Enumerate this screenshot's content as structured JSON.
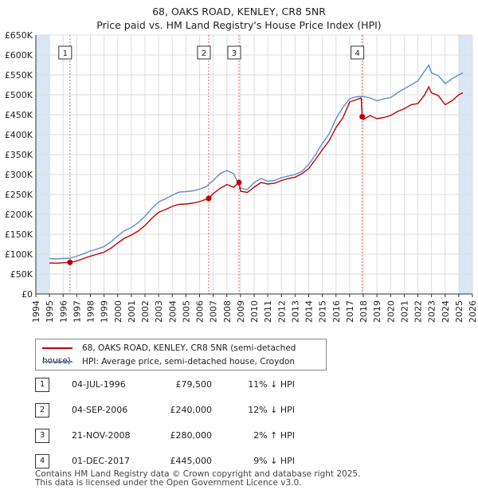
{
  "title": "68, OAKS ROAD, KENLEY, CR8 5NR",
  "subtitle": "Price paid vs. HM Land Registry's House Price Index (HPI)",
  "colors": {
    "property": "#c00000",
    "hpi": "#5b8fd0",
    "shade": "#dbe6f4",
    "grid": "#dddddd",
    "vline": "#e06060"
  },
  "chart_data": {
    "type": "line",
    "xlim": [
      1994,
      2026
    ],
    "ylim": [
      0,
      650000
    ],
    "y_ticks": [
      {
        "v": 0,
        "label": "£0"
      },
      {
        "v": 50000,
        "label": "£50K"
      },
      {
        "v": 100000,
        "label": "£100K"
      },
      {
        "v": 150000,
        "label": "£150K"
      },
      {
        "v": 200000,
        "label": "£200K"
      },
      {
        "v": 250000,
        "label": "£250K"
      },
      {
        "v": 300000,
        "label": "£300K"
      },
      {
        "v": 350000,
        "label": "£350K"
      },
      {
        "v": 400000,
        "label": "£400K"
      },
      {
        "v": 450000,
        "label": "£450K"
      },
      {
        "v": 500000,
        "label": "£500K"
      },
      {
        "v": 550000,
        "label": "£550K"
      },
      {
        "v": 600000,
        "label": "£600K"
      },
      {
        "v": 650000,
        "label": "£650K"
      }
    ],
    "x_ticks": [
      "1994",
      "1995",
      "1996",
      "1997",
      "1998",
      "1999",
      "2000",
      "2001",
      "2002",
      "2003",
      "2004",
      "2005",
      "2006",
      "2007",
      "2008",
      "2009",
      "2010",
      "2011",
      "2012",
      "2013",
      "2014",
      "2015",
      "2016",
      "2017",
      "2018",
      "2019",
      "2020",
      "2021",
      "2022",
      "2023",
      "2024",
      "2025",
      "2026"
    ],
    "shaded_ranges": [
      [
        1994,
        1995.0
      ],
      [
        2025.0,
        2026
      ]
    ],
    "series": [
      {
        "name": "68, OAKS ROAD, KENLEY, CR8 5NR (semi-detached house)",
        "color": "#c00000",
        "points": [
          [
            1995.0,
            78000
          ],
          [
            1995.5,
            77500
          ],
          [
            1996.0,
            78500
          ],
          [
            1996.5,
            79500
          ],
          [
            1997.0,
            83000
          ],
          [
            1997.5,
            89000
          ],
          [
            1998.0,
            95000
          ],
          [
            1998.5,
            100000
          ],
          [
            1999.0,
            105000
          ],
          [
            1999.5,
            115000
          ],
          [
            2000.0,
            128000
          ],
          [
            2000.5,
            140000
          ],
          [
            2001.0,
            148000
          ],
          [
            2001.5,
            158000
          ],
          [
            2002.0,
            172000
          ],
          [
            2002.5,
            190000
          ],
          [
            2003.0,
            205000
          ],
          [
            2003.5,
            212000
          ],
          [
            2004.0,
            220000
          ],
          [
            2004.5,
            225000
          ],
          [
            2005.0,
            226000
          ],
          [
            2005.5,
            228000
          ],
          [
            2006.0,
            232000
          ],
          [
            2006.67,
            240000
          ],
          [
            2007.0,
            252000
          ],
          [
            2007.5,
            265000
          ],
          [
            2008.0,
            275000
          ],
          [
            2008.5,
            268000
          ],
          [
            2008.89,
            280000
          ],
          [
            2009.0,
            258000
          ],
          [
            2009.5,
            255000
          ],
          [
            2010.0,
            268000
          ],
          [
            2010.5,
            280000
          ],
          [
            2011.0,
            276000
          ],
          [
            2011.5,
            278000
          ],
          [
            2012.0,
            285000
          ],
          [
            2012.5,
            290000
          ],
          [
            2013.0,
            293000
          ],
          [
            2013.5,
            302000
          ],
          [
            2014.0,
            315000
          ],
          [
            2014.5,
            338000
          ],
          [
            2015.0,
            362000
          ],
          [
            2015.5,
            385000
          ],
          [
            2016.0,
            418000
          ],
          [
            2016.5,
            442000
          ],
          [
            2017.0,
            482000
          ],
          [
            2017.5,
            488000
          ],
          [
            2017.85,
            492000
          ],
          [
            2017.92,
            445000
          ],
          [
            2018.0,
            438000
          ],
          [
            2018.5,
            448000
          ],
          [
            2019.0,
            440000
          ],
          [
            2019.5,
            443000
          ],
          [
            2020.0,
            448000
          ],
          [
            2020.5,
            458000
          ],
          [
            2021.0,
            465000
          ],
          [
            2021.5,
            475000
          ],
          [
            2022.0,
            478000
          ],
          [
            2022.5,
            500000
          ],
          [
            2022.8,
            520000
          ],
          [
            2023.0,
            505000
          ],
          [
            2023.5,
            498000
          ],
          [
            2024.0,
            475000
          ],
          [
            2024.5,
            485000
          ],
          [
            2025.0,
            500000
          ],
          [
            2025.3,
            505000
          ]
        ]
      },
      {
        "name": "HPI: Average price, semi-detached house, Croydon",
        "color": "#5b8fd0",
        "points": [
          [
            1995.0,
            89000
          ],
          [
            1995.5,
            88000
          ],
          [
            1996.0,
            89000
          ],
          [
            1996.5,
            90000
          ],
          [
            1997.0,
            95000
          ],
          [
            1997.5,
            101000
          ],
          [
            1998.0,
            108000
          ],
          [
            1998.5,
            113000
          ],
          [
            1999.0,
            119000
          ],
          [
            1999.5,
            131000
          ],
          [
            2000.0,
            146000
          ],
          [
            2000.5,
            159000
          ],
          [
            2001.0,
            167000
          ],
          [
            2001.5,
            179000
          ],
          [
            2002.0,
            195000
          ],
          [
            2002.5,
            215000
          ],
          [
            2003.0,
            231000
          ],
          [
            2003.5,
            239000
          ],
          [
            2004.0,
            248000
          ],
          [
            2004.5,
            256000
          ],
          [
            2005.0,
            257000
          ],
          [
            2005.5,
            259000
          ],
          [
            2006.0,
            263000
          ],
          [
            2006.5,
            270000
          ],
          [
            2007.0,
            285000
          ],
          [
            2007.5,
            302000
          ],
          [
            2008.0,
            310000
          ],
          [
            2008.5,
            302000
          ],
          [
            2009.0,
            266000
          ],
          [
            2009.5,
            262000
          ],
          [
            2010.0,
            280000
          ],
          [
            2010.5,
            290000
          ],
          [
            2011.0,
            283000
          ],
          [
            2011.5,
            285000
          ],
          [
            2012.0,
            292000
          ],
          [
            2012.5,
            296000
          ],
          [
            2013.0,
            300000
          ],
          [
            2013.5,
            308000
          ],
          [
            2014.0,
            325000
          ],
          [
            2014.5,
            350000
          ],
          [
            2015.0,
            378000
          ],
          [
            2015.5,
            402000
          ],
          [
            2016.0,
            440000
          ],
          [
            2016.5,
            468000
          ],
          [
            2017.0,
            490000
          ],
          [
            2017.5,
            495000
          ],
          [
            2018.0,
            496000
          ],
          [
            2018.5,
            492000
          ],
          [
            2019.0,
            485000
          ],
          [
            2019.5,
            490000
          ],
          [
            2020.0,
            493000
          ],
          [
            2020.5,
            505000
          ],
          [
            2021.0,
            515000
          ],
          [
            2021.5,
            525000
          ],
          [
            2022.0,
            535000
          ],
          [
            2022.5,
            560000
          ],
          [
            2022.8,
            575000
          ],
          [
            2023.0,
            555000
          ],
          [
            2023.5,
            548000
          ],
          [
            2024.0,
            528000
          ],
          [
            2024.5,
            540000
          ],
          [
            2025.0,
            550000
          ],
          [
            2025.3,
            555000
          ]
        ]
      }
    ],
    "sales": [
      {
        "label": "1",
        "x": 1996.5,
        "y": 79500
      },
      {
        "label": "2",
        "x": 2006.67,
        "y": 240000
      },
      {
        "label": "3",
        "x": 2008.89,
        "y": 280000
      },
      {
        "label": "4",
        "x": 2017.92,
        "y": 445000
      }
    ]
  },
  "legend": [
    {
      "label": "68, OAKS ROAD, KENLEY, CR8 5NR (semi-detached house)",
      "color": "#c00000"
    },
    {
      "label": "HPI: Average price, semi-detached house, Croydon",
      "color": "#5b8fd0"
    }
  ],
  "transactions": [
    {
      "num": "1",
      "date": "04-JUL-1996",
      "price": "£79,500",
      "hpi": "11% ↓ HPI"
    },
    {
      "num": "2",
      "date": "04-SEP-2006",
      "price": "£240,000",
      "hpi": "12% ↓ HPI"
    },
    {
      "num": "3",
      "date": "21-NOV-2008",
      "price": "£280,000",
      "hpi": "2% ↑ HPI"
    },
    {
      "num": "4",
      "date": "01-DEC-2017",
      "price": "£445,000",
      "hpi": "9% ↓ HPI"
    }
  ],
  "footer": {
    "line1": "Contains HM Land Registry data © Crown copyright and database right 2025.",
    "line2": "This data is licensed under the Open Government Licence v3.0."
  }
}
